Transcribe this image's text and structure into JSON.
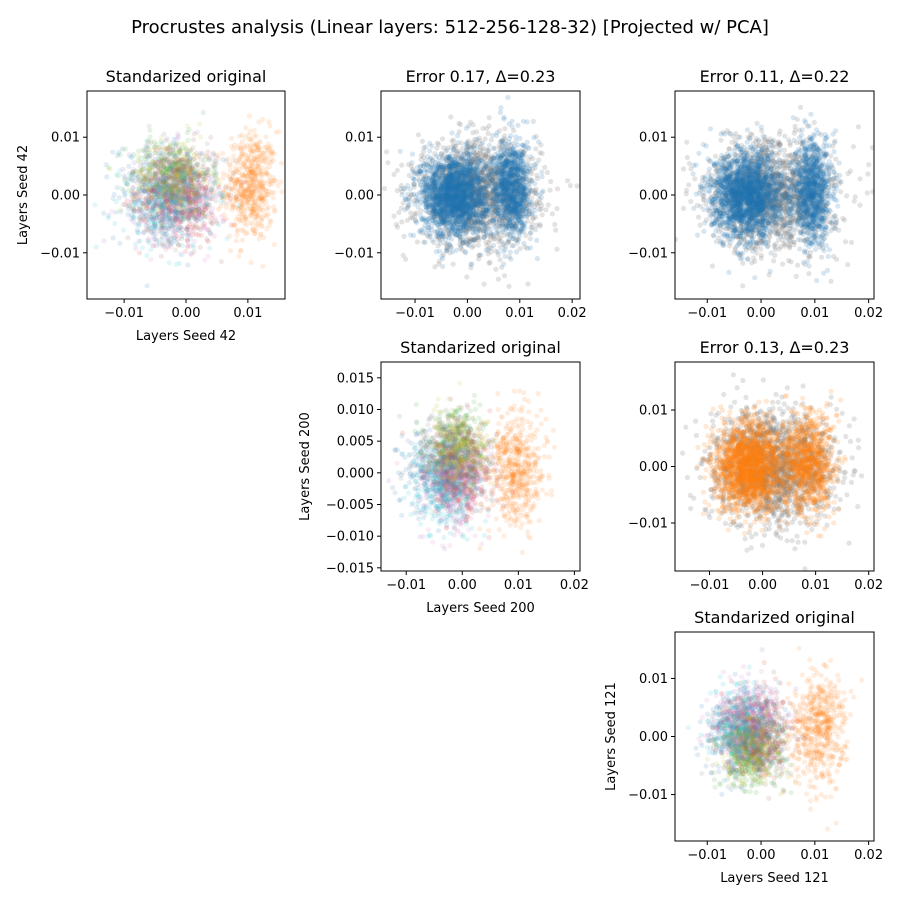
{
  "chart_data": {
    "type": "scatter",
    "title": "Procrustes analysis (Linear layers: 512-256-128-32) [Projected w/ PCA]",
    "colors": {
      "blue": "#1f77b4",
      "orange": "#ff7f0e",
      "green": "#2ca02c",
      "red": "#d62728",
      "purple": "#9467bd",
      "brown": "#8c564b",
      "pink": "#e377c2",
      "gray": "#7f7f7f",
      "olive": "#bcbd22",
      "cyan": "#17becf"
    },
    "panels": [
      {
        "id": "p00",
        "title": "Standarized original",
        "xlabel": "Layers Seed 42",
        "ylabel": "Layers Seed 42",
        "xlim": [
          -0.016,
          0.016
        ],
        "ylim": [
          -0.018,
          0.018
        ],
        "xticks": [
          -0.01,
          0.0,
          0.01
        ],
        "xtick_labels": [
          "−0.01",
          "0.00",
          "0.01"
        ],
        "yticks": [
          -0.01,
          0.0,
          0.01
        ],
        "ytick_labels": [
          "−0.01",
          "0.00",
          "0.01"
        ],
        "kind": "original",
        "clusters": [
          {
            "color": "orange",
            "cx": 0.0105,
            "cy": 0.0015,
            "sx": 0.0021,
            "sy": 0.0048
          },
          {
            "color": "blue",
            "cx": -0.0045,
            "cy": 0.0005,
            "sx": 0.0035,
            "sy": 0.0042
          },
          {
            "color": "green",
            "cx": -0.0025,
            "cy": 0.004,
            "sx": 0.0032,
            "sy": 0.003
          },
          {
            "color": "red",
            "cx": -0.001,
            "cy": -0.0005,
            "sx": 0.0032,
            "sy": 0.004
          },
          {
            "color": "purple",
            "cx": -0.002,
            "cy": 0.0005,
            "sx": 0.0035,
            "sy": 0.004
          },
          {
            "color": "brown",
            "cx": -0.0005,
            "cy": 0.0,
            "sx": 0.003,
            "sy": 0.004
          },
          {
            "color": "pink",
            "cx": -0.0015,
            "cy": -0.002,
            "sx": 0.0035,
            "sy": 0.0035
          },
          {
            "color": "gray",
            "cx": -0.002,
            "cy": 0.0015,
            "sx": 0.0035,
            "sy": 0.0038
          },
          {
            "color": "olive",
            "cx": -0.002,
            "cy": 0.003,
            "sx": 0.0032,
            "sy": 0.0032
          },
          {
            "color": "cyan",
            "cx": -0.003,
            "cy": -0.0025,
            "sx": 0.0038,
            "sy": 0.0038
          }
        ]
      },
      {
        "id": "p01",
        "title": "Error 0.17, Δ=0.23",
        "xlabel": "",
        "ylabel": "",
        "xlim": [
          -0.0165,
          0.0215
        ],
        "ylim": [
          -0.018,
          0.018
        ],
        "xticks": [
          -0.01,
          0.0,
          0.01,
          0.02
        ],
        "xtick_labels": [
          "−0.01",
          "0.00",
          "0.01",
          "0.02"
        ],
        "yticks": [
          -0.01,
          0.0,
          0.01
        ],
        "ytick_labels": [
          "−0.01",
          "0.00",
          "0.01"
        ],
        "kind": "aligned",
        "gray_cloud": {
          "cx": 0.002,
          "cy": 0.0,
          "sx": 0.0058,
          "sy": 0.0045
        },
        "main_color": "blue",
        "main": [
          {
            "cx": -0.0025,
            "cy": 0.0,
            "sx": 0.0032,
            "sy": 0.0035
          },
          {
            "cx": 0.0085,
            "cy": 0.001,
            "sx": 0.0018,
            "sy": 0.0042
          }
        ]
      },
      {
        "id": "p02",
        "title": "Error 0.11, Δ=0.22",
        "xlabel": "",
        "ylabel": "",
        "xlim": [
          -0.016,
          0.021
        ],
        "ylim": [
          -0.018,
          0.018
        ],
        "xticks": [
          -0.01,
          0.0,
          0.01,
          0.02
        ],
        "xtick_labels": [
          "−0.01",
          "0.00",
          "0.01",
          "0.02"
        ],
        "yticks": [
          -0.01,
          0.0,
          0.01
        ],
        "ytick_labels": [
          "−0.01",
          "0.00",
          "0.01"
        ],
        "kind": "aligned",
        "gray_cloud": {
          "cx": 0.002,
          "cy": 0.0,
          "sx": 0.0058,
          "sy": 0.0048
        },
        "main_color": "blue",
        "main": [
          {
            "cx": -0.0025,
            "cy": 0.0,
            "sx": 0.0032,
            "sy": 0.0036
          },
          {
            "cx": 0.0095,
            "cy": 0.0005,
            "sx": 0.0018,
            "sy": 0.0045
          }
        ]
      },
      {
        "id": "p11",
        "title": "Standarized original",
        "xlabel": "Layers Seed 200",
        "ylabel": "Layers Seed 200",
        "xlim": [
          -0.0145,
          0.021
        ],
        "ylim": [
          -0.0155,
          0.0175
        ],
        "xticks": [
          -0.01,
          0.0,
          0.01,
          0.02
        ],
        "xtick_labels": [
          "−0.01",
          "0.00",
          "0.01",
          "0.02"
        ],
        "yticks": [
          -0.015,
          -0.01,
          -0.005,
          0.0,
          0.005,
          0.01,
          0.015
        ],
        "ytick_labels": [
          "−0.015",
          "−0.010",
          "−0.005",
          "0.000",
          "0.005",
          "0.010",
          "0.015"
        ],
        "kind": "original",
        "clusters": [
          {
            "color": "orange",
            "cx": 0.0095,
            "cy": 0.0005,
            "sx": 0.0025,
            "sy": 0.0045
          },
          {
            "color": "blue",
            "cx": -0.0045,
            "cy": 0.0,
            "sx": 0.003,
            "sy": 0.0035
          },
          {
            "color": "green",
            "cx": -0.001,
            "cy": 0.005,
            "sx": 0.0028,
            "sy": 0.0028
          },
          {
            "color": "red",
            "cx": -0.001,
            "cy": -0.001,
            "sx": 0.0028,
            "sy": 0.0035
          },
          {
            "color": "purple",
            "cx": -0.002,
            "cy": 0.0,
            "sx": 0.003,
            "sy": 0.0035
          },
          {
            "color": "brown",
            "cx": 0.0,
            "cy": 0.0015,
            "sx": 0.0028,
            "sy": 0.0035
          },
          {
            "color": "pink",
            "cx": -0.001,
            "cy": -0.002,
            "sx": 0.003,
            "sy": 0.0035
          },
          {
            "color": "gray",
            "cx": -0.002,
            "cy": 0.002,
            "sx": 0.003,
            "sy": 0.0035
          },
          {
            "color": "olive",
            "cx": -0.0005,
            "cy": 0.004,
            "sx": 0.0028,
            "sy": 0.003
          },
          {
            "color": "cyan",
            "cx": -0.003,
            "cy": -0.003,
            "sx": 0.0032,
            "sy": 0.0035
          }
        ]
      },
      {
        "id": "p12",
        "title": "Error 0.13, Δ=0.23",
        "xlabel": "",
        "ylabel": "",
        "xlim": [
          -0.0165,
          0.021
        ],
        "ylim": [
          -0.0185,
          0.0185
        ],
        "xticks": [
          -0.01,
          0.0,
          0.01,
          0.02
        ],
        "xtick_labels": [
          "−0.01",
          "0.00",
          "0.01",
          "0.02"
        ],
        "yticks": [
          -0.01,
          0.0,
          0.01
        ],
        "ytick_labels": [
          "−0.01",
          "0.00",
          "0.01"
        ],
        "kind": "aligned",
        "gray_cloud": {
          "cx": 0.002,
          "cy": 0.0,
          "sx": 0.0058,
          "sy": 0.005
        },
        "main_color": "orange",
        "main": [
          {
            "cx": -0.0025,
            "cy": 0.0,
            "sx": 0.0032,
            "sy": 0.0038
          },
          {
            "cx": 0.0085,
            "cy": 0.0005,
            "sx": 0.0025,
            "sy": 0.0045
          }
        ]
      },
      {
        "id": "p22",
        "title": "Standarized original",
        "xlabel": "Layers Seed 121",
        "ylabel": "Layers Seed 121",
        "xlim": [
          -0.016,
          0.021
        ],
        "ylim": [
          -0.018,
          0.018
        ],
        "xticks": [
          -0.01,
          0.0,
          0.01,
          0.02
        ],
        "xtick_labels": [
          "−0.01",
          "0.00",
          "0.01",
          "0.02"
        ],
        "yticks": [
          -0.01,
          0.0,
          0.01
        ],
        "ytick_labels": [
          "−0.01",
          "0.00",
          "0.01"
        ],
        "kind": "original",
        "clusters": [
          {
            "color": "orange",
            "cx": 0.0105,
            "cy": 0.001,
            "sx": 0.0025,
            "sy": 0.0048
          },
          {
            "color": "blue",
            "cx": -0.0045,
            "cy": -0.0005,
            "sx": 0.003,
            "sy": 0.0036
          },
          {
            "color": "green",
            "cx": -0.002,
            "cy": -0.004,
            "sx": 0.003,
            "sy": 0.003
          },
          {
            "color": "red",
            "cx": -0.001,
            "cy": 0.001,
            "sx": 0.003,
            "sy": 0.0036
          },
          {
            "color": "purple",
            "cx": -0.0015,
            "cy": 0.0015,
            "sx": 0.003,
            "sy": 0.0036
          },
          {
            "color": "brown",
            "cx": -0.0005,
            "cy": 0.0,
            "sx": 0.0028,
            "sy": 0.0035
          },
          {
            "color": "pink",
            "cx": -0.0025,
            "cy": 0.003,
            "sx": 0.003,
            "sy": 0.003
          },
          {
            "color": "gray",
            "cx": -0.002,
            "cy": 0.0,
            "sx": 0.003,
            "sy": 0.0036
          },
          {
            "color": "olive",
            "cx": -0.002,
            "cy": -0.002,
            "sx": 0.003,
            "sy": 0.0032
          },
          {
            "color": "cyan",
            "cx": -0.004,
            "cy": 0.0025,
            "sx": 0.0032,
            "sy": 0.0032
          }
        ]
      }
    ]
  }
}
